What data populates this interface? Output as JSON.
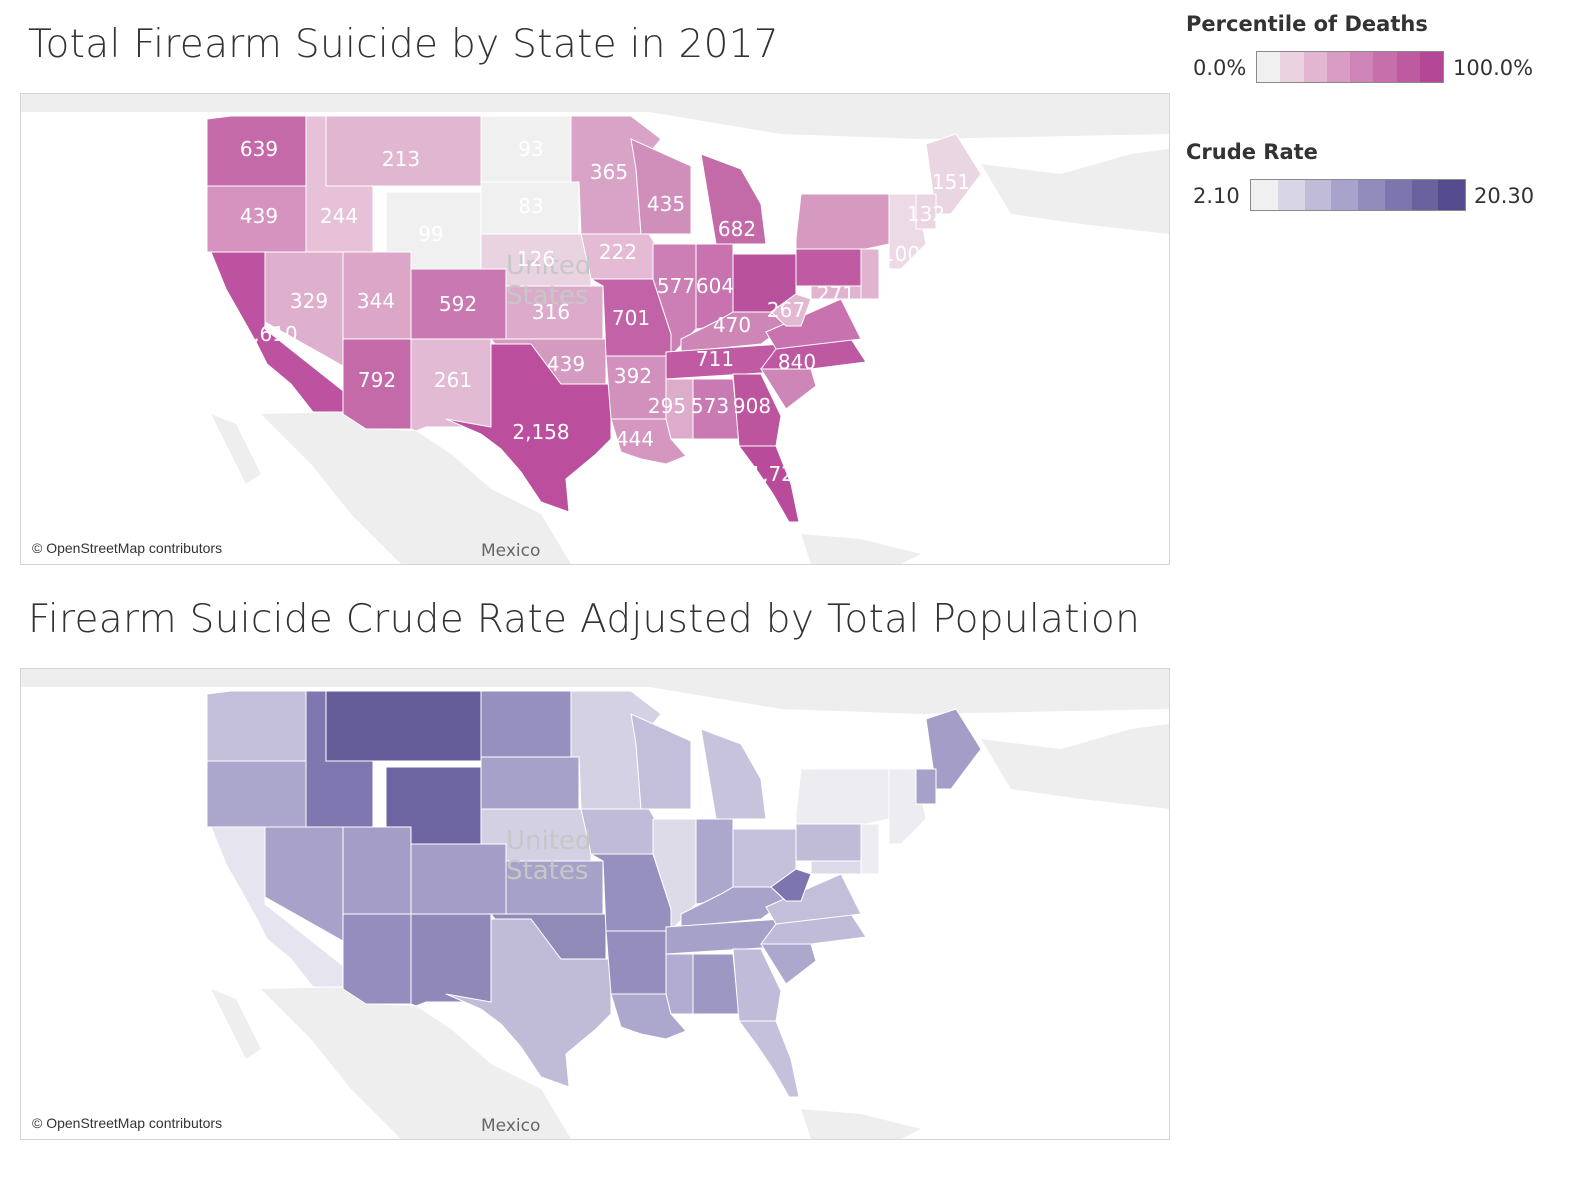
{
  "map1": {
    "title": "Total Firearm Suicide by State in 2017",
    "attribution": "© OpenStreetMap contributors",
    "country_label_1": "United",
    "country_label_2": "States",
    "mexico_label": "Mexico",
    "legend": {
      "title": "Percentile of Deaths",
      "min": "0.0%",
      "max": "100.0%",
      "colors": [
        "#f0f0f0",
        "#ebd2e0",
        "#e2b5d0",
        "#d99cc4",
        "#cf84b7",
        "#c66fab",
        "#bd5aa0",
        "#b44796"
      ]
    },
    "states": [
      {
        "code": "WA",
        "value": "639",
        "color": "#c46aa8"
      },
      {
        "code": "OR",
        "value": "439",
        "color": "#d693c0"
      },
      {
        "code": "CA",
        "value": "1,610",
        "color": "#bd52a0"
      },
      {
        "code": "NV",
        "value": "329",
        "color": "#dfb0cd"
      },
      {
        "code": "ID",
        "value": "244",
        "color": "#e6c1d8"
      },
      {
        "code": "MT",
        "value": "213",
        "color": "#e1b6d0"
      },
      {
        "code": "WY",
        "value": "99",
        "color": "#f0f0f0"
      },
      {
        "code": "UT",
        "value": "344",
        "color": "#dba6c8"
      },
      {
        "code": "AZ",
        "value": "792",
        "color": "#c46aa8"
      },
      {
        "code": "CO",
        "value": "592",
        "color": "#ca78b2"
      },
      {
        "code": "NM",
        "value": "261",
        "color": "#e3bad3"
      },
      {
        "code": "ND",
        "value": "93",
        "color": "#f0f0f0"
      },
      {
        "code": "SD",
        "value": "83",
        "color": "#f0f0f0"
      },
      {
        "code": "NE",
        "value": "126",
        "color": "#ead3e1"
      },
      {
        "code": "KS",
        "value": "316",
        "color": "#dcaacb"
      },
      {
        "code": "OK",
        "value": "439",
        "color": "#d49ac0"
      },
      {
        "code": "TX",
        "value": "2,158",
        "color": "#bb4f9d"
      },
      {
        "code": "MN",
        "value": "365",
        "color": "#d9a3c7"
      },
      {
        "code": "IA",
        "value": "222",
        "color": "#e4bad4"
      },
      {
        "code": "MO",
        "value": "701",
        "color": "#c363a7"
      },
      {
        "code": "AR",
        "value": "392",
        "color": "#d291bc"
      },
      {
        "code": "LA",
        "value": "444",
        "color": "#d597c0"
      },
      {
        "code": "WI",
        "value": "435",
        "color": "#d08ebb"
      },
      {
        "code": "IL",
        "value": "577",
        "color": "#cb7fb4"
      },
      {
        "code": "MI",
        "value": "682",
        "color": "#c36aa8"
      },
      {
        "code": "IN",
        "value": "604",
        "color": "#c873b0"
      },
      {
        "code": "OH",
        "value": "",
        "color": "#b9509c"
      },
      {
        "code": "KY",
        "value": "470",
        "color": "#ce86b7"
      },
      {
        "code": "TN",
        "value": "711",
        "color": "#c05ba3"
      },
      {
        "code": "MS",
        "value": "295",
        "color": "#ddaccb"
      },
      {
        "code": "AL",
        "value": "573",
        "color": "#c97ab3"
      },
      {
        "code": "GA",
        "value": "908",
        "color": "#bc559e"
      },
      {
        "code": "FL",
        "value": "1,723",
        "color": "#b94b9b"
      },
      {
        "code": "SC",
        "value": "",
        "color": "#ce86b7"
      },
      {
        "code": "NC",
        "value": "840",
        "color": "#be58a1"
      },
      {
        "code": "VA",
        "value": "",
        "color": "#c873b0"
      },
      {
        "code": "WV",
        "value": "267",
        "color": "#e2b8d2"
      },
      {
        "code": "PA",
        "value": "",
        "color": "#c05ba3"
      },
      {
        "code": "NY",
        "value": "",
        "color": "#d699c0"
      },
      {
        "code": "MD",
        "value": "271",
        "color": "#e0b3cf"
      },
      {
        "code": "NJ",
        "value": "",
        "color": "#e0b3cf"
      },
      {
        "code": "NE_REGION",
        "value": "100",
        "color": "#ecdbe6"
      },
      {
        "code": "ME",
        "value": "151",
        "color": "#ead6e2"
      },
      {
        "code": "NH",
        "value": "132",
        "color": "#ead6e2"
      }
    ]
  },
  "map2": {
    "title": "Firearm Suicide Crude Rate Adjusted by Total Population",
    "attribution": "© OpenStreetMap contributors",
    "country_label_1": "United",
    "country_label_2": "States",
    "mexico_label": "Mexico",
    "legend": {
      "title": "Crude Rate",
      "min": "2.10",
      "max": "20.30",
      "colors": [
        "#f0f0f0",
        "#d8d5e6",
        "#bfbbd8",
        "#a8a3ca",
        "#928cbc",
        "#7d76ae",
        "#6a619f",
        "#554b8f"
      ]
    },
    "states": [
      {
        "code": "WA",
        "color": "#c3bfdb"
      },
      {
        "code": "OR",
        "color": "#aba6cb"
      },
      {
        "code": "CA",
        "color": "#e6e4ee"
      },
      {
        "code": "NV",
        "color": "#a8a2ca"
      },
      {
        "code": "ID",
        "color": "#7f77af"
      },
      {
        "code": "MT",
        "color": "#655c9a"
      },
      {
        "code": "WY",
        "color": "#6d65a1"
      },
      {
        "code": "UT",
        "color": "#a39dc7"
      },
      {
        "code": "AZ",
        "color": "#948dbd"
      },
      {
        "code": "CO",
        "color": "#a39dc7"
      },
      {
        "code": "NM",
        "color": "#8f88b9"
      },
      {
        "code": "ND",
        "color": "#9690bf"
      },
      {
        "code": "SD",
        "color": "#a6a1c9"
      },
      {
        "code": "NE",
        "color": "#d3d0e3"
      },
      {
        "code": "KS",
        "color": "#a6a1c9"
      },
      {
        "code": "OK",
        "color": "#908ab9"
      },
      {
        "code": "TX",
        "color": "#c0bcd8"
      },
      {
        "code": "MN",
        "color": "#d4d1e4"
      },
      {
        "code": "IA",
        "color": "#bfbbd8"
      },
      {
        "code": "MO",
        "color": "#9690bf"
      },
      {
        "code": "AR",
        "color": "#948dbd"
      },
      {
        "code": "LA",
        "color": "#aca7cc"
      },
      {
        "code": "WI",
        "color": "#c3bfdb"
      },
      {
        "code": "IL",
        "color": "#dedbe9"
      },
      {
        "code": "MI",
        "color": "#c7c3dd"
      },
      {
        "code": "IN",
        "color": "#aca7cc"
      },
      {
        "code": "OH",
        "color": "#c5c1dc"
      },
      {
        "code": "KY",
        "color": "#a8a3ca"
      },
      {
        "code": "TN",
        "color": "#a6a1c9"
      },
      {
        "code": "MS",
        "color": "#b1acd0"
      },
      {
        "code": "AL",
        "color": "#9d97c3"
      },
      {
        "code": "GA",
        "color": "#bfbbd8"
      },
      {
        "code": "FL",
        "color": "#c5c1dc"
      },
      {
        "code": "SC",
        "color": "#aca7cc"
      },
      {
        "code": "NC",
        "color": "#bfbbd8"
      },
      {
        "code": "VA",
        "color": "#c3bfdb"
      },
      {
        "code": "WV",
        "color": "#7d76ae"
      },
      {
        "code": "PA",
        "color": "#c0bcd8"
      },
      {
        "code": "NY",
        "color": "#ececf1"
      },
      {
        "code": "MD",
        "color": "#dcd9e8"
      },
      {
        "code": "NJ",
        "color": "#ececf1"
      },
      {
        "code": "NE_REGION",
        "color": "#ececf1"
      },
      {
        "code": "ME",
        "color": "#a39dc7"
      },
      {
        "code": "NH",
        "color": "#a6a1c9"
      }
    ]
  }
}
